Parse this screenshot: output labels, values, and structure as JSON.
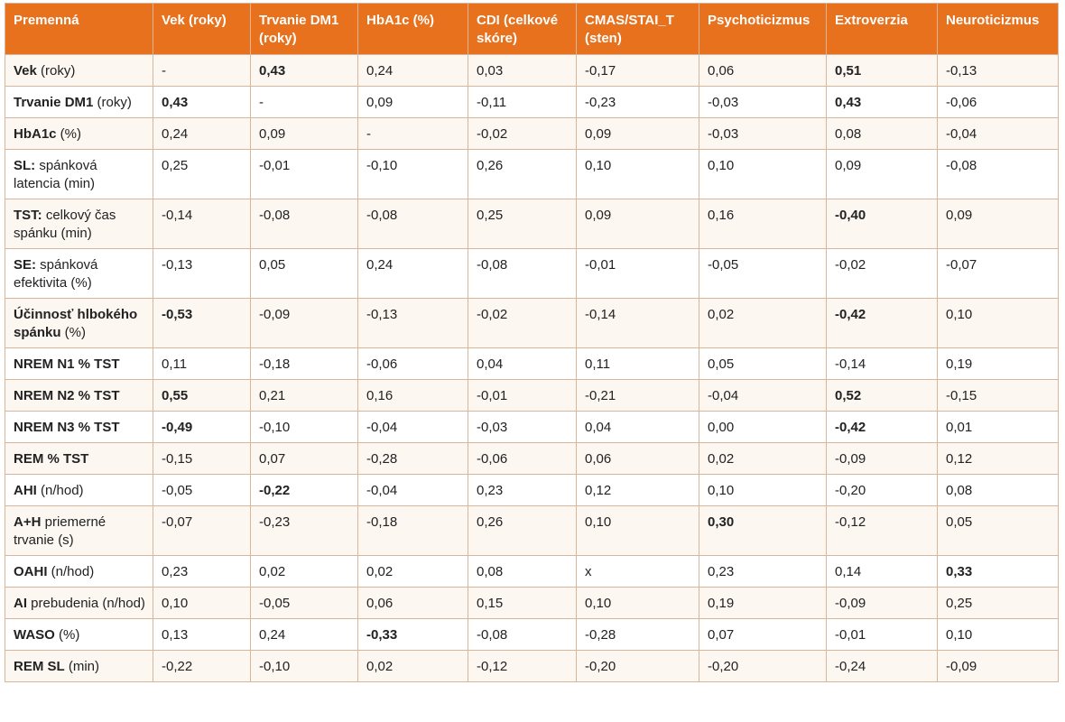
{
  "columns": [
    "Premenná",
    "Vek (roky)",
    "Trvanie DM1 (roky)",
    "HbA1c (%)",
    "CDI (celkové skóre)",
    "CMAS/STAI_T (sten)",
    "Psychoticizmus",
    "Extroverzia",
    "Neuroticizmus"
  ],
  "rows": [
    {
      "label_bold": "Vek",
      "label_rest": " (roky)",
      "cells": [
        {
          "v": "-",
          "b": false
        },
        {
          "v": "0,43",
          "b": true
        },
        {
          "v": "0,24",
          "b": false
        },
        {
          "v": "0,03",
          "b": false
        },
        {
          "v": "-0,17",
          "b": false
        },
        {
          "v": "0,06",
          "b": false
        },
        {
          "v": "0,51",
          "b": true
        },
        {
          "v": "-0,13",
          "b": false
        }
      ]
    },
    {
      "label_bold": "Trvanie DM1",
      "label_rest": " (roky)",
      "cells": [
        {
          "v": "0,43",
          "b": true
        },
        {
          "v": "-",
          "b": false
        },
        {
          "v": "0,09",
          "b": false
        },
        {
          "v": "-0,11",
          "b": false
        },
        {
          "v": "-0,23",
          "b": false
        },
        {
          "v": "-0,03",
          "b": false
        },
        {
          "v": "0,43",
          "b": true
        },
        {
          "v": "-0,06",
          "b": false
        }
      ]
    },
    {
      "label_bold": "HbA1c",
      "label_rest": " (%)",
      "cells": [
        {
          "v": "0,24",
          "b": false
        },
        {
          "v": "0,09",
          "b": false
        },
        {
          "v": "-",
          "b": false
        },
        {
          "v": "-0,02",
          "b": false
        },
        {
          "v": "0,09",
          "b": false
        },
        {
          "v": "-0,03",
          "b": false
        },
        {
          "v": "0,08",
          "b": false
        },
        {
          "v": "-0,04",
          "b": false
        }
      ]
    },
    {
      "label_bold": "SL:",
      "label_rest": " spánková latencia (min)",
      "cells": [
        {
          "v": "0,25",
          "b": false
        },
        {
          "v": "-0,01",
          "b": false
        },
        {
          "v": "-0,10",
          "b": false
        },
        {
          "v": "0,26",
          "b": false
        },
        {
          "v": "0,10",
          "b": false
        },
        {
          "v": "0,10",
          "b": false
        },
        {
          "v": "0,09",
          "b": false
        },
        {
          "v": "-0,08",
          "b": false
        }
      ]
    },
    {
      "label_bold": "TST:",
      "label_rest": " celkový čas spánku (min)",
      "cells": [
        {
          "v": "-0,14",
          "b": false
        },
        {
          "v": "-0,08",
          "b": false
        },
        {
          "v": "-0,08",
          "b": false
        },
        {
          "v": "0,25",
          "b": false
        },
        {
          "v": "0,09",
          "b": false
        },
        {
          "v": "0,16",
          "b": false
        },
        {
          "v": "-0,40",
          "b": true
        },
        {
          "v": "0,09",
          "b": false
        }
      ]
    },
    {
      "label_bold": "SE:",
      "label_rest": " spánková efektivita (%)",
      "cells": [
        {
          "v": "-0,13",
          "b": false
        },
        {
          "v": "0,05",
          "b": false
        },
        {
          "v": "0,24",
          "b": false
        },
        {
          "v": "-0,08",
          "b": false
        },
        {
          "v": "-0,01",
          "b": false
        },
        {
          "v": "-0,05",
          "b": false
        },
        {
          "v": "-0,02",
          "b": false
        },
        {
          "v": "-0,07",
          "b": false
        }
      ]
    },
    {
      "label_bold": "Účinnosť hlbokého spánku",
      "label_rest": " (%)",
      "cells": [
        {
          "v": "-0,53",
          "b": true
        },
        {
          "v": "-0,09",
          "b": false
        },
        {
          "v": "-0,13",
          "b": false
        },
        {
          "v": "-0,02",
          "b": false
        },
        {
          "v": "-0,14",
          "b": false
        },
        {
          "v": "0,02",
          "b": false
        },
        {
          "v": "-0,42",
          "b": true
        },
        {
          "v": "0,10",
          "b": false
        }
      ]
    },
    {
      "label_bold": "NREM N1 % TST",
      "label_rest": "",
      "cells": [
        {
          "v": "0,11",
          "b": false
        },
        {
          "v": "-0,18",
          "b": false
        },
        {
          "v": "-0,06",
          "b": false
        },
        {
          "v": "0,04",
          "b": false
        },
        {
          "v": "0,11",
          "b": false
        },
        {
          "v": "0,05",
          "b": false
        },
        {
          "v": "-0,14",
          "b": false
        },
        {
          "v": "0,19",
          "b": false
        }
      ]
    },
    {
      "label_bold": "NREM N2 % TST",
      "label_rest": "",
      "cells": [
        {
          "v": "0,55",
          "b": true
        },
        {
          "v": "0,21",
          "b": false
        },
        {
          "v": "0,16",
          "b": false
        },
        {
          "v": "-0,01",
          "b": false
        },
        {
          "v": "-0,21",
          "b": false
        },
        {
          "v": "-0,04",
          "b": false
        },
        {
          "v": "0,52",
          "b": true
        },
        {
          "v": "-0,15",
          "b": false
        }
      ]
    },
    {
      "label_bold": "NREM N3 % TST",
      "label_rest": "",
      "cells": [
        {
          "v": "-0,49",
          "b": true
        },
        {
          "v": "-0,10",
          "b": false
        },
        {
          "v": "-0,04",
          "b": false
        },
        {
          "v": "-0,03",
          "b": false
        },
        {
          "v": "0,04",
          "b": false
        },
        {
          "v": "0,00",
          "b": false
        },
        {
          "v": "-0,42",
          "b": true
        },
        {
          "v": "0,01",
          "b": false
        }
      ]
    },
    {
      "label_bold": "REM % TST",
      "label_rest": "",
      "cells": [
        {
          "v": "-0,15",
          "b": false
        },
        {
          "v": "0,07",
          "b": false
        },
        {
          "v": "-0,28",
          "b": false
        },
        {
          "v": "-0,06",
          "b": false
        },
        {
          "v": "0,06",
          "b": false
        },
        {
          "v": "0,02",
          "b": false
        },
        {
          "v": "-0,09",
          "b": false
        },
        {
          "v": "0,12",
          "b": false
        }
      ]
    },
    {
      "label_bold": "AHI",
      "label_rest": " (n/hod)",
      "cells": [
        {
          "v": "-0,05",
          "b": false
        },
        {
          "v": "-0,22",
          "b": true
        },
        {
          "v": "-0,04",
          "b": false
        },
        {
          "v": "0,23",
          "b": false
        },
        {
          "v": "0,12",
          "b": false
        },
        {
          "v": "0,10",
          "b": false
        },
        {
          "v": "-0,20",
          "b": false
        },
        {
          "v": "0,08",
          "b": false
        }
      ]
    },
    {
      "label_bold": "A+H",
      "label_rest": " priemerné trvanie (s)",
      "cells": [
        {
          "v": "-0,07",
          "b": false
        },
        {
          "v": "-0,23",
          "b": false
        },
        {
          "v": "-0,18",
          "b": false
        },
        {
          "v": "0,26",
          "b": false
        },
        {
          "v": "0,10",
          "b": false
        },
        {
          "v": "0,30",
          "b": true
        },
        {
          "v": "-0,12",
          "b": false
        },
        {
          "v": "0,05",
          "b": false
        }
      ]
    },
    {
      "label_bold": "OAHI",
      "label_rest": " (n/hod)",
      "cells": [
        {
          "v": "0,23",
          "b": false
        },
        {
          "v": "0,02",
          "b": false
        },
        {
          "v": "0,02",
          "b": false
        },
        {
          "v": "0,08",
          "b": false
        },
        {
          "v": "x",
          "b": false
        },
        {
          "v": "0,23",
          "b": false
        },
        {
          "v": "0,14",
          "b": false
        },
        {
          "v": "0,33",
          "b": true
        }
      ]
    },
    {
      "label_bold": "AI",
      "label_rest": " prebudenia (n/hod)",
      "cells": [
        {
          "v": "0,10",
          "b": false
        },
        {
          "v": "-0,05",
          "b": false
        },
        {
          "v": "0,06",
          "b": false
        },
        {
          "v": "0,15",
          "b": false
        },
        {
          "v": "0,10",
          "b": false
        },
        {
          "v": "0,19",
          "b": false
        },
        {
          "v": "-0,09",
          "b": false
        },
        {
          "v": "0,25",
          "b": false
        }
      ]
    },
    {
      "label_bold": "WASO",
      "label_rest": " (%)",
      "cells": [
        {
          "v": "0,13",
          "b": false
        },
        {
          "v": "0,24",
          "b": false
        },
        {
          "v": "-0,33",
          "b": true
        },
        {
          "v": "-0,08",
          "b": false
        },
        {
          "v": "-0,28",
          "b": false
        },
        {
          "v": "0,07",
          "b": false
        },
        {
          "v": "-0,01",
          "b": false
        },
        {
          "v": "0,10",
          "b": false
        }
      ]
    },
    {
      "label_bold": "REM SL",
      "label_rest": " (min)",
      "cells": [
        {
          "v": "-0,22",
          "b": false
        },
        {
          "v": "-0,10",
          "b": false
        },
        {
          "v": "0,02",
          "b": false
        },
        {
          "v": "-0,12",
          "b": false
        },
        {
          "v": "-0,20",
          "b": false
        },
        {
          "v": "-0,20",
          "b": false
        },
        {
          "v": "-0,24",
          "b": false
        },
        {
          "v": "-0,09",
          "b": false
        }
      ]
    }
  ],
  "colors": {
    "header_bg": "#e8711e",
    "header_text": "#ffffff",
    "border": "#d9b59a",
    "row_alt": "#fdf7f2"
  }
}
